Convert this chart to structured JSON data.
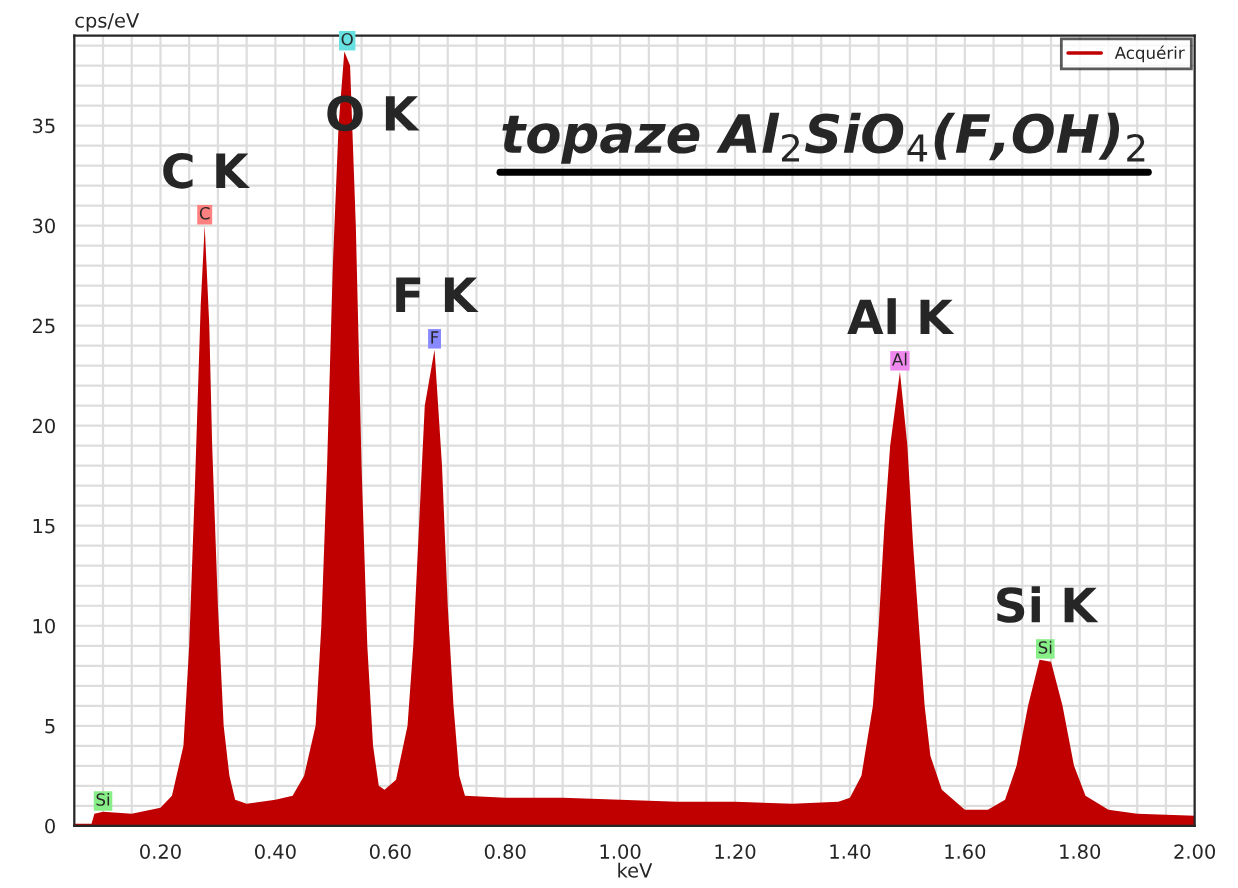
{
  "chart_data": {
    "type": "area",
    "title": "topaze Al$_{2}$SiO$_{4}$(F,OH)$_{2}$",
    "xlabel": "keV",
    "ylabel": "cps/eV",
    "x": [
      0.05,
      0.08,
      0.085,
      0.1,
      0.15,
      0.2,
      0.22,
      0.24,
      0.25,
      0.26,
      0.27,
      0.277,
      0.285,
      0.29,
      0.3,
      0.31,
      0.32,
      0.33,
      0.35,
      0.4,
      0.43,
      0.45,
      0.47,
      0.48,
      0.49,
      0.5,
      0.51,
      0.52,
      0.53,
      0.54,
      0.55,
      0.56,
      0.57,
      0.58,
      0.59,
      0.61,
      0.63,
      0.64,
      0.65,
      0.66,
      0.677,
      0.69,
      0.7,
      0.71,
      0.72,
      0.73,
      0.8,
      0.9,
      1.0,
      1.1,
      1.2,
      1.3,
      1.38,
      1.4,
      1.42,
      1.44,
      1.45,
      1.46,
      1.47,
      1.487,
      1.5,
      1.51,
      1.52,
      1.53,
      1.54,
      1.56,
      1.6,
      1.64,
      1.67,
      1.69,
      1.71,
      1.73,
      1.75,
      1.77,
      1.79,
      1.81,
      1.85,
      1.9,
      2.0
    ],
    "series": [
      {
        "name": "Acquérir",
        "color": "#c00000",
        "values": [
          0.1,
          0.1,
          0.6,
          0.7,
          0.6,
          0.9,
          1.5,
          4,
          9,
          17,
          26,
          30,
          25,
          19,
          11,
          5,
          2.5,
          1.3,
          1.1,
          1.3,
          1.5,
          2.5,
          5,
          10,
          18,
          28,
          35,
          38.7,
          38,
          30,
          18,
          9,
          4,
          2,
          1.8,
          2.3,
          5,
          9,
          15,
          21,
          23.8,
          18,
          11,
          6,
          2.5,
          1.5,
          1.4,
          1.4,
          1.3,
          1.2,
          1.2,
          1.1,
          1.2,
          1.4,
          2.5,
          6,
          10,
          15,
          19,
          22.7,
          19,
          14,
          10,
          6,
          3.5,
          1.8,
          0.8,
          0.8,
          1.3,
          3,
          6,
          8.3,
          8.2,
          6,
          3,
          1.5,
          0.8,
          0.6,
          0.5
        ]
      }
    ],
    "xlim": [
      0.05,
      2.0
    ],
    "ylim": [
      0,
      39.5
    ],
    "xticks": [
      {
        "value": 0.05,
        "label": null
      },
      {
        "value": 0.1,
        "label": null
      },
      {
        "value": 0.15,
        "label": null
      },
      {
        "value": 0.2,
        "label": "0.20"
      },
      {
        "value": 0.25,
        "label": null
      },
      {
        "value": 0.3,
        "label": null
      },
      {
        "value": 0.35,
        "label": null
      },
      {
        "value": 0.4,
        "label": "0.40"
      },
      {
        "value": 0.45,
        "label": null
      },
      {
        "value": 0.5,
        "label": null
      },
      {
        "value": 0.55,
        "label": null
      },
      {
        "value": 0.6,
        "label": "0.60"
      },
      {
        "value": 0.65,
        "label": null
      },
      {
        "value": 0.7,
        "label": null
      },
      {
        "value": 0.75,
        "label": null
      },
      {
        "value": 0.8,
        "label": "0.80"
      },
      {
        "value": 0.85,
        "label": null
      },
      {
        "value": 0.9,
        "label": null
      },
      {
        "value": 0.95,
        "label": null
      },
      {
        "value": 1.0,
        "label": "1.00"
      },
      {
        "value": 1.05,
        "label": null
      },
      {
        "value": 1.1,
        "label": null
      },
      {
        "value": 1.15,
        "label": null
      },
      {
        "value": 1.2,
        "label": "1.20"
      },
      {
        "value": 1.25,
        "label": null
      },
      {
        "value": 1.3,
        "label": null
      },
      {
        "value": 1.35,
        "label": null
      },
      {
        "value": 1.4,
        "label": "1.40"
      },
      {
        "value": 1.45,
        "label": null
      },
      {
        "value": 1.5,
        "label": null
      },
      {
        "value": 1.55,
        "label": null
      },
      {
        "value": 1.6,
        "label": "1.60"
      },
      {
        "value": 1.65,
        "label": null
      },
      {
        "value": 1.7,
        "label": null
      },
      {
        "value": 1.75,
        "label": null
      },
      {
        "value": 1.8,
        "label": "1.80"
      },
      {
        "value": 1.85,
        "label": null
      },
      {
        "value": 1.9,
        "label": null
      },
      {
        "value": 1.95,
        "label": null
      },
      {
        "value": 2.0,
        "label": "2.00"
      }
    ],
    "yticks": [
      0,
      {
        "value": 1,
        "label": null
      },
      {
        "value": 2,
        "label": null
      },
      {
        "value": 3,
        "label": null
      },
      {
        "value": 4,
        "label": null
      },
      5,
      {
        "value": 6,
        "label": null
      },
      {
        "value": 7,
        "label": null
      },
      {
        "value": 8,
        "label": null
      },
      {
        "value": 9,
        "label": null
      },
      10,
      {
        "value": 11,
        "label": null
      },
      {
        "value": 12,
        "label": null
      },
      {
        "value": 13,
        "label": null
      },
      {
        "value": 14,
        "label": null
      },
      15,
      {
        "value": 16,
        "label": null
      },
      {
        "value": 17,
        "label": null
      },
      {
        "value": 18,
        "label": null
      },
      {
        "value": 19,
        "label": null
      },
      20,
      {
        "value": 21,
        "label": null
      },
      {
        "value": 22,
        "label": null
      },
      {
        "value": 23,
        "label": null
      },
      {
        "value": 24,
        "label": null
      },
      25,
      {
        "value": 26,
        "label": null
      },
      {
        "value": 27,
        "label": null
      },
      {
        "value": 28,
        "label": null
      },
      {
        "value": 29,
        "label": null
      },
      30,
      {
        "value": 31,
        "label": null
      },
      {
        "value": 32,
        "label": null
      },
      {
        "value": 33,
        "label": null
      },
      {
        "value": 34,
        "label": null
      },
      35,
      {
        "value": 36,
        "label": null
      },
      {
        "value": 37,
        "label": null
      },
      {
        "value": 38,
        "label": null
      },
      {
        "value": 39,
        "label": null
      }
    ],
    "grid": true,
    "legend": "top right",
    "annotations": [
      {
        "text": "C K",
        "x": 0.277,
        "y": 30
      },
      {
        "text": "O K",
        "x": 0.525,
        "y": 38.7
      },
      {
        "text": "F K",
        "x": 0.677,
        "y": 23.8
      },
      {
        "text": "Al K",
        "x": 1.487,
        "y": 22.7
      },
      {
        "text": "Si K",
        "x": 1.74,
        "y": 8.3
      },
      {
        "text": "C",
        "x": 0.277,
        "y": 30
      },
      {
        "text": "O",
        "x": 0.525,
        "y": 38.7
      },
      {
        "text": "F",
        "x": 0.677,
        "y": 23.8
      },
      {
        "text": "Al",
        "x": 1.487,
        "y": 22.7
      },
      {
        "text": "Si",
        "x": 1.74,
        "y": 8.3
      },
      {
        "text": "Si",
        "x": 0.1,
        "y": 0.7
      }
    ]
  }
}
